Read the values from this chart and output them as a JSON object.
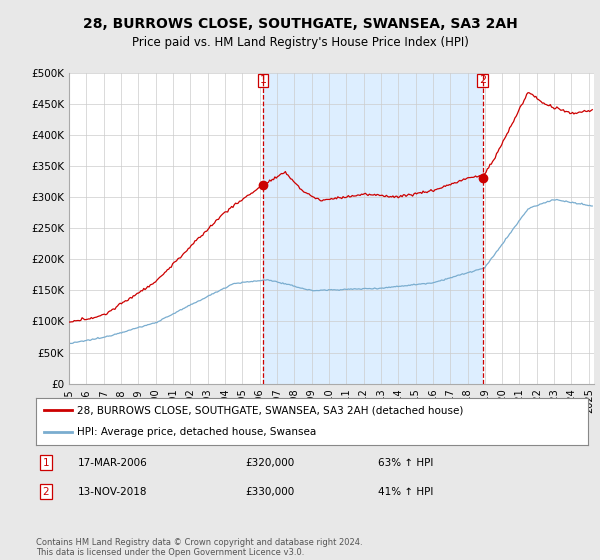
{
  "title": "28, BURROWS CLOSE, SOUTHGATE, SWANSEA, SA3 2AH",
  "subtitle": "Price paid vs. HM Land Registry's House Price Index (HPI)",
  "title_fontsize": 10,
  "subtitle_fontsize": 8.5,
  "ylabel_ticks": [
    "£0",
    "£50K",
    "£100K",
    "£150K",
    "£200K",
    "£250K",
    "£300K",
    "£350K",
    "£400K",
    "£450K",
    "£500K"
  ],
  "ytick_vals": [
    0,
    50000,
    100000,
    150000,
    200000,
    250000,
    300000,
    350000,
    400000,
    450000,
    500000
  ],
  "ylim": [
    0,
    500000
  ],
  "xlim_start": 1995.0,
  "xlim_end": 2025.3,
  "background_color": "#e8e8e8",
  "plot_bg_color": "#ffffff",
  "red_line_color": "#cc0000",
  "blue_line_color": "#7aadcf",
  "shade_color": "#ddeeff",
  "transaction1_year": 2006.21,
  "transaction1_price": 320000,
  "transaction2_year": 2018.87,
  "transaction2_price": 330000,
  "legend_label_red": "28, BURROWS CLOSE, SOUTHGATE, SWANSEA, SA3 2AH (detached house)",
  "legend_label_blue": "HPI: Average price, detached house, Swansea",
  "info1_num": "1",
  "info1_date": "17-MAR-2006",
  "info1_price": "£320,000",
  "info1_hpi": "63% ↑ HPI",
  "info2_num": "2",
  "info2_date": "13-NOV-2018",
  "info2_price": "£330,000",
  "info2_hpi": "41% ↑ HPI",
  "footer": "Contains HM Land Registry data © Crown copyright and database right 2024.\nThis data is licensed under the Open Government Licence v3.0.",
  "dashed_line1_x": 2006.21,
  "dashed_line2_x": 2018.87
}
